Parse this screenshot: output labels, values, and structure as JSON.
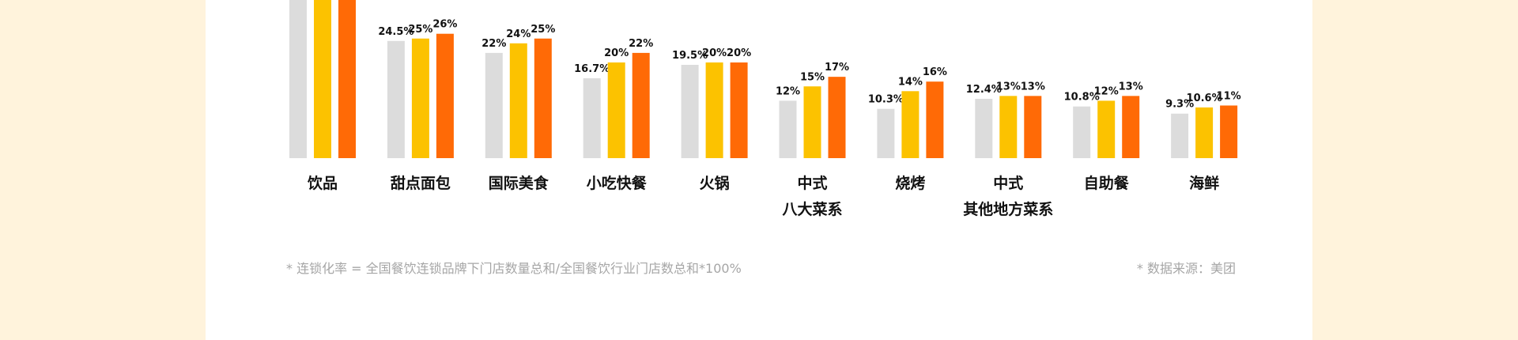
{
  "chart_data": {
    "type": "bar",
    "categories": [
      [
        "饮品"
      ],
      [
        "甜点面包"
      ],
      [
        "国际美食"
      ],
      [
        "小吃快餐"
      ],
      [
        "火锅"
      ],
      [
        "中式",
        "八大菜系"
      ],
      [
        "烧烤"
      ],
      [
        "中式",
        "其他地方菜系"
      ],
      [
        "自助餐"
      ],
      [
        "海鲜"
      ]
    ],
    "series": [
      {
        "color": "#dcdcdc",
        "values": [
          null,
          24.5,
          22,
          16.7,
          19.5,
          12,
          10.3,
          12.4,
          10.8,
          9.3
        ],
        "labels": [
          "",
          "24.5%",
          "22%",
          "16.7%",
          "19.5%",
          "12%",
          "10.3%",
          "12.4%",
          "10.8%",
          "9.3%"
        ]
      },
      {
        "color": "#fcc200",
        "values": [
          null,
          25,
          24,
          20,
          20,
          15,
          14,
          13,
          12,
          10.6
        ],
        "labels": [
          "",
          "25%",
          "24%",
          "20%",
          "20%",
          "15%",
          "14%",
          "13%",
          "12%",
          "10.6%"
        ]
      },
      {
        "color": "#ff6a06",
        "values": [
          null,
          26,
          25,
          22,
          20,
          17,
          16,
          13,
          13,
          11
        ],
        "labels": [
          "",
          "26%",
          "25%",
          "22%",
          "20%",
          "17%",
          "16%",
          "13%",
          "13%",
          "11%"
        ]
      }
    ],
    "clipped_category_index": 0,
    "baseline": 0
  },
  "footnote": {
    "left": "* 连锁化率 = 全国餐饮连锁品牌下门店数量总和/全国餐饮行业门店数总和*100%",
    "right": "* 数据来源：美团"
  }
}
